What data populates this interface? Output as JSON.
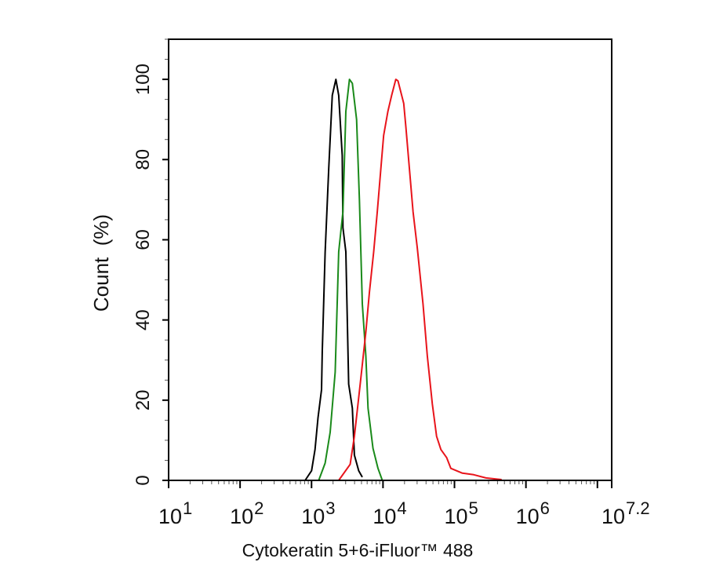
{
  "chart_data": {
    "type": "line",
    "title": "",
    "xlabel": "Cytokeratin 5+6-iFluor™ 488",
    "ylabel": "Count  (%)",
    "x_scale": "log",
    "xlim": [
      10,
      15848932
    ],
    "ylim": [
      0,
      110
    ],
    "grid": false,
    "x_ticks": [
      {
        "value": 10,
        "base": "10",
        "exp": "1"
      },
      {
        "value": 100,
        "base": "10",
        "exp": "2"
      },
      {
        "value": 1000,
        "base": "10",
        "exp": "3"
      },
      {
        "value": 10000,
        "base": "10",
        "exp": "4"
      },
      {
        "value": 100000,
        "base": "10",
        "exp": "5"
      },
      {
        "value": 1000000,
        "base": "10",
        "exp": "6"
      },
      {
        "value": 15848932,
        "base": "10",
        "exp": "7.2"
      }
    ],
    "y_ticks": [
      "0",
      "20",
      "40",
      "60",
      "80",
      "100"
    ],
    "series": [
      {
        "color": "#000000",
        "x": [
          813,
          1000,
          1120,
          1230,
          1380,
          1410,
          1550,
          1740,
          1950,
          2190,
          2400,
          2690,
          2750,
          3020,
          3310,
          3720,
          3980,
          4570,
          5130
        ],
        "y": [
          0,
          2.4,
          7.7,
          15.6,
          22.6,
          31.9,
          56.9,
          77.8,
          96,
          100,
          96,
          81,
          63,
          57,
          24,
          18,
          6.3,
          2.4,
          0.8
        ]
      },
      {
        "color": "#1a8a1a",
        "x": [
          1260,
          1550,
          1820,
          2140,
          2400,
          2750,
          3020,
          3390,
          3720,
          4270,
          4680,
          5130,
          5750,
          6170,
          7240,
          8510,
          9770
        ],
        "y": [
          0,
          4.3,
          12,
          27,
          57,
          67,
          92,
          100,
          99,
          90,
          70,
          44,
          31,
          18,
          8,
          3,
          0
        ]
      },
      {
        "color": "#e8141b",
        "x": [
          2400,
          3470,
          3980,
          4790,
          5750,
          6460,
          7410,
          8320,
          9550,
          10200,
          11700,
          13200,
          15100,
          16200,
          19500,
          20900,
          26300,
          30200,
          36300,
          41700,
          49000,
          56200,
          64600,
          77600,
          89100,
          129000,
          186000,
          275000,
          457000
        ],
        "y": [
          0,
          4,
          11,
          24,
          37,
          47,
          57,
          67,
          80,
          86,
          92,
          96,
          100,
          99.6,
          94,
          88,
          67,
          58,
          44,
          31,
          19,
          11,
          7.7,
          5.7,
          3,
          1.8,
          1.4,
          0.6,
          0.2
        ]
      }
    ]
  }
}
